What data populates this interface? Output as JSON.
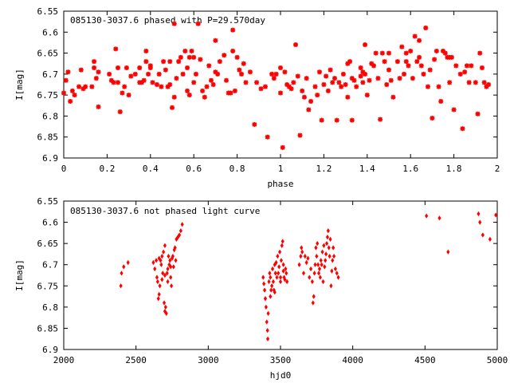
{
  "chart_data": [
    {
      "type": "scatter",
      "title": "085130-3037.6 phased with P=29.570day",
      "xlabel": "phase",
      "ylabel": "I[mag]",
      "xlim": [
        0,
        2
      ],
      "ylim": [
        6.9,
        6.55
      ],
      "y_axis_inverted": true,
      "grid": false,
      "marker_color": "#ff0000",
      "xticks": [
        "0",
        "0.2",
        "0.4",
        "0.6",
        "0.8",
        "1",
        "1.2",
        "1.4",
        "1.6",
        "1.8",
        "2"
      ],
      "yticks": [
        "6.55",
        "6.6",
        "6.65",
        "6.7",
        "6.75",
        "6.8",
        "6.85",
        "6.9"
      ],
      "points": [
        [
          0.0,
          6.745
        ],
        [
          0.01,
          6.715
        ],
        [
          0.02,
          6.695
        ],
        [
          0.03,
          6.765
        ],
        [
          0.04,
          6.74
        ],
        [
          0.05,
          6.75
        ],
        [
          0.07,
          6.73
        ],
        [
          0.08,
          6.69
        ],
        [
          0.09,
          6.735
        ],
        [
          0.1,
          6.73
        ],
        [
          0.13,
          6.73
        ],
        [
          0.14,
          6.685
        ],
        [
          0.14,
          6.67
        ],
        [
          0.15,
          6.71
        ],
        [
          0.16,
          6.695
        ],
        [
          0.16,
          6.778
        ],
        [
          0.21,
          6.7
        ],
        [
          0.22,
          6.715
        ],
        [
          0.23,
          6.72
        ],
        [
          0.24,
          6.64
        ],
        [
          0.25,
          6.685
        ],
        [
          0.25,
          6.72
        ],
        [
          0.26,
          6.79
        ],
        [
          0.27,
          6.745
        ],
        [
          0.28,
          6.73
        ],
        [
          0.29,
          6.685
        ],
        [
          0.3,
          6.75
        ],
        [
          0.31,
          6.705
        ],
        [
          0.33,
          6.7
        ],
        [
          0.35,
          6.72
        ],
        [
          0.35,
          6.685
        ],
        [
          0.36,
          6.72
        ],
        [
          0.37,
          6.715
        ],
        [
          0.38,
          6.67
        ],
        [
          0.38,
          6.645
        ],
        [
          0.39,
          6.7
        ],
        [
          0.4,
          6.685
        ],
        [
          0.4,
          6.68
        ],
        [
          0.41,
          6.72
        ],
        [
          0.43,
          6.725
        ],
        [
          0.44,
          6.7
        ],
        [
          0.45,
          6.73
        ],
        [
          0.46,
          6.67
        ],
        [
          0.47,
          6.69
        ],
        [
          0.48,
          6.73
        ],
        [
          0.49,
          6.67
        ],
        [
          0.49,
          6.725
        ],
        [
          0.5,
          6.78
        ],
        [
          0.51,
          6.755
        ],
        [
          0.51,
          6.58
        ],
        [
          0.52,
          6.71
        ],
        [
          0.53,
          6.67
        ],
        [
          0.54,
          6.66
        ],
        [
          0.55,
          6.7
        ],
        [
          0.56,
          6.645
        ],
        [
          0.57,
          6.685
        ],
        [
          0.57,
          6.74
        ],
        [
          0.58,
          6.75
        ],
        [
          0.58,
          6.66
        ],
        [
          0.59,
          6.645
        ],
        [
          0.6,
          6.66
        ],
        [
          0.6,
          6.72
        ],
        [
          0.61,
          6.7
        ],
        [
          0.62,
          6.58
        ],
        [
          0.63,
          6.665
        ],
        [
          0.64,
          6.74
        ],
        [
          0.65,
          6.755
        ],
        [
          0.66,
          6.73
        ],
        [
          0.67,
          6.68
        ],
        [
          0.68,
          6.715
        ],
        [
          0.69,
          6.725
        ],
        [
          0.7,
          6.695
        ],
        [
          0.7,
          6.62
        ],
        [
          0.71,
          6.7
        ],
        [
          0.72,
          6.67
        ],
        [
          0.74,
          6.655
        ],
        [
          0.75,
          6.715
        ],
        [
          0.76,
          6.745
        ],
        [
          0.77,
          6.745
        ],
        [
          0.78,
          6.645
        ],
        [
          0.78,
          6.595
        ],
        [
          0.79,
          6.74
        ],
        [
          0.8,
          6.66
        ],
        [
          0.81,
          6.69
        ],
        [
          0.82,
          6.7
        ],
        [
          0.83,
          6.675
        ],
        [
          0.84,
          6.72
        ],
        [
          0.86,
          6.695
        ],
        [
          0.88,
          6.82
        ],
        [
          0.89,
          6.72
        ],
        [
          0.91,
          6.735
        ],
        [
          0.93,
          6.73
        ],
        [
          0.94,
          6.85
        ],
        [
          0.96,
          6.7
        ],
        [
          0.97,
          6.71
        ],
        [
          0.98,
          6.7
        ],
        [
          1.0,
          6.685
        ],
        [
          1.0,
          6.745
        ],
        [
          1.01,
          6.875
        ],
        [
          1.02,
          6.695
        ],
        [
          1.03,
          6.725
        ],
        [
          1.04,
          6.73
        ],
        [
          1.05,
          6.735
        ],
        [
          1.06,
          6.72
        ],
        [
          1.07,
          6.63
        ],
        [
          1.08,
          6.705
        ],
        [
          1.09,
          6.846
        ],
        [
          1.1,
          6.74
        ],
        [
          1.11,
          6.755
        ],
        [
          1.12,
          6.71
        ],
        [
          1.13,
          6.785
        ],
        [
          1.14,
          6.765
        ],
        [
          1.16,
          6.73
        ],
        [
          1.17,
          6.75
        ],
        [
          1.18,
          6.695
        ],
        [
          1.19,
          6.81
        ],
        [
          1.2,
          6.725
        ],
        [
          1.21,
          6.705
        ],
        [
          1.22,
          6.74
        ],
        [
          1.23,
          6.69
        ],
        [
          1.24,
          6.72
        ],
        [
          1.25,
          6.71
        ],
        [
          1.26,
          6.81
        ],
        [
          1.27,
          6.72
        ],
        [
          1.28,
          6.73
        ],
        [
          1.29,
          6.7
        ],
        [
          1.3,
          6.725
        ],
        [
          1.31,
          6.675
        ],
        [
          1.31,
          6.755
        ],
        [
          1.32,
          6.67
        ],
        [
          1.33,
          6.81
        ],
        [
          1.33,
          6.71
        ],
        [
          1.34,
          6.715
        ],
        [
          1.35,
          6.73
        ],
        [
          1.37,
          6.685
        ],
        [
          1.37,
          6.705
        ],
        [
          1.38,
          6.695
        ],
        [
          1.38,
          6.72
        ],
        [
          1.39,
          6.63
        ],
        [
          1.39,
          6.7
        ],
        [
          1.4,
          6.75
        ],
        [
          1.41,
          6.715
        ],
        [
          1.42,
          6.675
        ],
        [
          1.43,
          6.68
        ],
        [
          1.44,
          6.65
        ],
        [
          1.45,
          6.71
        ],
        [
          1.46,
          6.808
        ],
        [
          1.47,
          6.65
        ],
        [
          1.48,
          6.67
        ],
        [
          1.49,
          6.725
        ],
        [
          1.5,
          6.69
        ],
        [
          1.5,
          6.65
        ],
        [
          1.51,
          6.715
        ],
        [
          1.52,
          6.755
        ],
        [
          1.54,
          6.67
        ],
        [
          1.55,
          6.71
        ],
        [
          1.56,
          6.635
        ],
        [
          1.57,
          6.7
        ],
        [
          1.58,
          6.65
        ],
        [
          1.58,
          6.67
        ],
        [
          1.59,
          6.68
        ],
        [
          1.6,
          6.645
        ],
        [
          1.61,
          6.71
        ],
        [
          1.62,
          6.61
        ],
        [
          1.63,
          6.67
        ],
        [
          1.64,
          6.66
        ],
        [
          1.64,
          6.62
        ],
        [
          1.65,
          6.68
        ],
        [
          1.66,
          6.7
        ],
        [
          1.67,
          6.59
        ],
        [
          1.68,
          6.73
        ],
        [
          1.69,
          6.69
        ],
        [
          1.7,
          6.805
        ],
        [
          1.71,
          6.665
        ],
        [
          1.72,
          6.645
        ],
        [
          1.73,
          6.73
        ],
        [
          1.74,
          6.765
        ],
        [
          1.75,
          6.645
        ],
        [
          1.76,
          6.65
        ],
        [
          1.77,
          6.66
        ],
        [
          1.78,
          6.66
        ],
        [
          1.78,
          6.72
        ],
        [
          1.79,
          6.66
        ],
        [
          1.8,
          6.785
        ],
        [
          1.81,
          6.68
        ],
        [
          1.83,
          6.7
        ],
        [
          1.84,
          6.83
        ],
        [
          1.85,
          6.695
        ],
        [
          1.86,
          6.68
        ],
        [
          1.87,
          6.72
        ],
        [
          1.88,
          6.68
        ],
        [
          1.9,
          6.72
        ],
        [
          1.91,
          6.795
        ],
        [
          1.92,
          6.65
        ],
        [
          1.93,
          6.685
        ],
        [
          1.94,
          6.72
        ],
        [
          1.95,
          6.73
        ],
        [
          1.96,
          6.725
        ]
      ]
    },
    {
      "type": "scatter",
      "title": "085130-3037.6 not phased light curve",
      "xlabel": "hjd0",
      "ylabel": "I[mag]",
      "xlim": [
        2000,
        5000
      ],
      "ylim": [
        6.9,
        6.55
      ],
      "y_axis_inverted": true,
      "grid": false,
      "marker_color": "#ff0000",
      "xticks": [
        "2000",
        "2500",
        "3000",
        "3500",
        "4000",
        "4500",
        "5000"
      ],
      "yticks": [
        "6.55",
        "6.6",
        "6.65",
        "6.7",
        "6.75",
        "6.8",
        "6.85",
        "6.9"
      ],
      "points": [
        [
          2395,
          6.75
        ],
        [
          2400,
          6.72
        ],
        [
          2415,
          6.705
        ],
        [
          2445,
          6.695
        ],
        [
          2620,
          6.695
        ],
        [
          2630,
          6.71
        ],
        [
          2640,
          6.69
        ],
        [
          2645,
          6.73
        ],
        [
          2650,
          6.74
        ],
        [
          2655,
          6.78
        ],
        [
          2660,
          6.77
        ],
        [
          2665,
          6.75
        ],
        [
          2670,
          6.69
        ],
        [
          2675,
          6.7
        ],
        [
          2680,
          6.68
        ],
        [
          2685,
          6.72
        ],
        [
          2690,
          6.67
        ],
        [
          2695,
          6.79
        ],
        [
          2700,
          6.81
        ],
        [
          2705,
          6.8
        ],
        [
          2710,
          6.815
        ],
        [
          2715,
          6.72
        ],
        [
          2720,
          6.74
        ],
        [
          2725,
          6.68
        ],
        [
          2730,
          6.7
        ],
        [
          2735,
          6.69
        ],
        [
          2740,
          6.73
        ],
        [
          2745,
          6.75
        ],
        [
          2750,
          6.685
        ],
        [
          2755,
          6.68
        ],
        [
          2760,
          6.705
        ],
        [
          2765,
          6.665
        ],
        [
          2770,
          6.66
        ],
        [
          2775,
          6.69
        ],
        [
          2780,
          6.64
        ],
        [
          2790,
          6.635
        ],
        [
          2800,
          6.63
        ],
        [
          2810,
          6.62
        ],
        [
          2820,
          6.605
        ],
        [
          2700,
          6.655
        ],
        [
          2720,
          6.71
        ],
        [
          2740,
          6.705
        ],
        [
          2680,
          6.735
        ],
        [
          2660,
          6.685
        ],
        [
          2700,
          6.725
        ],
        [
          3380,
          6.73
        ],
        [
          3385,
          6.745
        ],
        [
          3390,
          6.76
        ],
        [
          3395,
          6.78
        ],
        [
          3400,
          6.8
        ],
        [
          3405,
          6.835
        ],
        [
          3410,
          6.855
        ],
        [
          3412,
          6.875
        ],
        [
          3415,
          6.815
        ],
        [
          3420,
          6.74
        ],
        [
          3425,
          6.72
        ],
        [
          3430,
          6.73
        ],
        [
          3435,
          6.76
        ],
        [
          3440,
          6.75
        ],
        [
          3445,
          6.71
        ],
        [
          3450,
          6.74
        ],
        [
          3455,
          6.76
        ],
        [
          3460,
          6.7
        ],
        [
          3465,
          6.72
        ],
        [
          3470,
          6.695
        ],
        [
          3475,
          6.73
        ],
        [
          3480,
          6.68
        ],
        [
          3485,
          6.72
        ],
        [
          3490,
          6.705
        ],
        [
          3495,
          6.67
        ],
        [
          3500,
          6.74
        ],
        [
          3505,
          6.69
        ],
        [
          3510,
          6.655
        ],
        [
          3515,
          6.645
        ],
        [
          3520,
          6.715
        ],
        [
          3525,
          6.73
        ],
        [
          3530,
          6.735
        ],
        [
          3535,
          6.71
        ],
        [
          3540,
          6.72
        ],
        [
          3545,
          6.74
        ],
        [
          3395,
          6.78
        ],
        [
          3430,
          6.775
        ],
        [
          3460,
          6.765
        ],
        [
          3500,
          6.73
        ],
        [
          3520,
          6.7
        ],
        [
          3630,
          6.7
        ],
        [
          3640,
          6.68
        ],
        [
          3645,
          6.66
        ],
        [
          3650,
          6.67
        ],
        [
          3660,
          6.72
        ],
        [
          3670,
          6.68
        ],
        [
          3680,
          6.695
        ],
        [
          3690,
          6.685
        ],
        [
          3700,
          6.73
        ],
        [
          3710,
          6.71
        ],
        [
          3720,
          6.74
        ],
        [
          3725,
          6.79
        ],
        [
          3730,
          6.775
        ],
        [
          3735,
          6.72
        ],
        [
          3740,
          6.7
        ],
        [
          3745,
          6.66
        ],
        [
          3750,
          6.68
        ],
        [
          3755,
          6.65
        ],
        [
          3760,
          6.7
        ],
        [
          3765,
          6.72
        ],
        [
          3770,
          6.71
        ],
        [
          3775,
          6.73
        ],
        [
          3780,
          6.69
        ],
        [
          3785,
          6.7
        ],
        [
          3790,
          6.67
        ],
        [
          3795,
          6.74
        ],
        [
          3800,
          6.655
        ],
        [
          3805,
          6.705
        ],
        [
          3810,
          6.69
        ],
        [
          3815,
          6.675
        ],
        [
          3820,
          6.65
        ],
        [
          3825,
          6.635
        ],
        [
          3830,
          6.62
        ],
        [
          3835,
          6.66
        ],
        [
          3840,
          6.68
        ],
        [
          3845,
          6.64
        ],
        [
          3850,
          6.75
        ],
        [
          3855,
          6.715
        ],
        [
          3860,
          6.69
        ],
        [
          3865,
          6.66
        ],
        [
          3870,
          6.68
        ],
        [
          3880,
          6.71
        ],
        [
          3890,
          6.72
        ],
        [
          3900,
          6.73
        ],
        [
          4510,
          6.585
        ],
        [
          4600,
          6.59
        ],
        [
          4660,
          6.67
        ],
        [
          4870,
          6.58
        ],
        [
          4880,
          6.6
        ],
        [
          4900,
          6.63
        ],
        [
          4950,
          6.64
        ],
        [
          4990,
          6.583
        ]
      ]
    }
  ]
}
